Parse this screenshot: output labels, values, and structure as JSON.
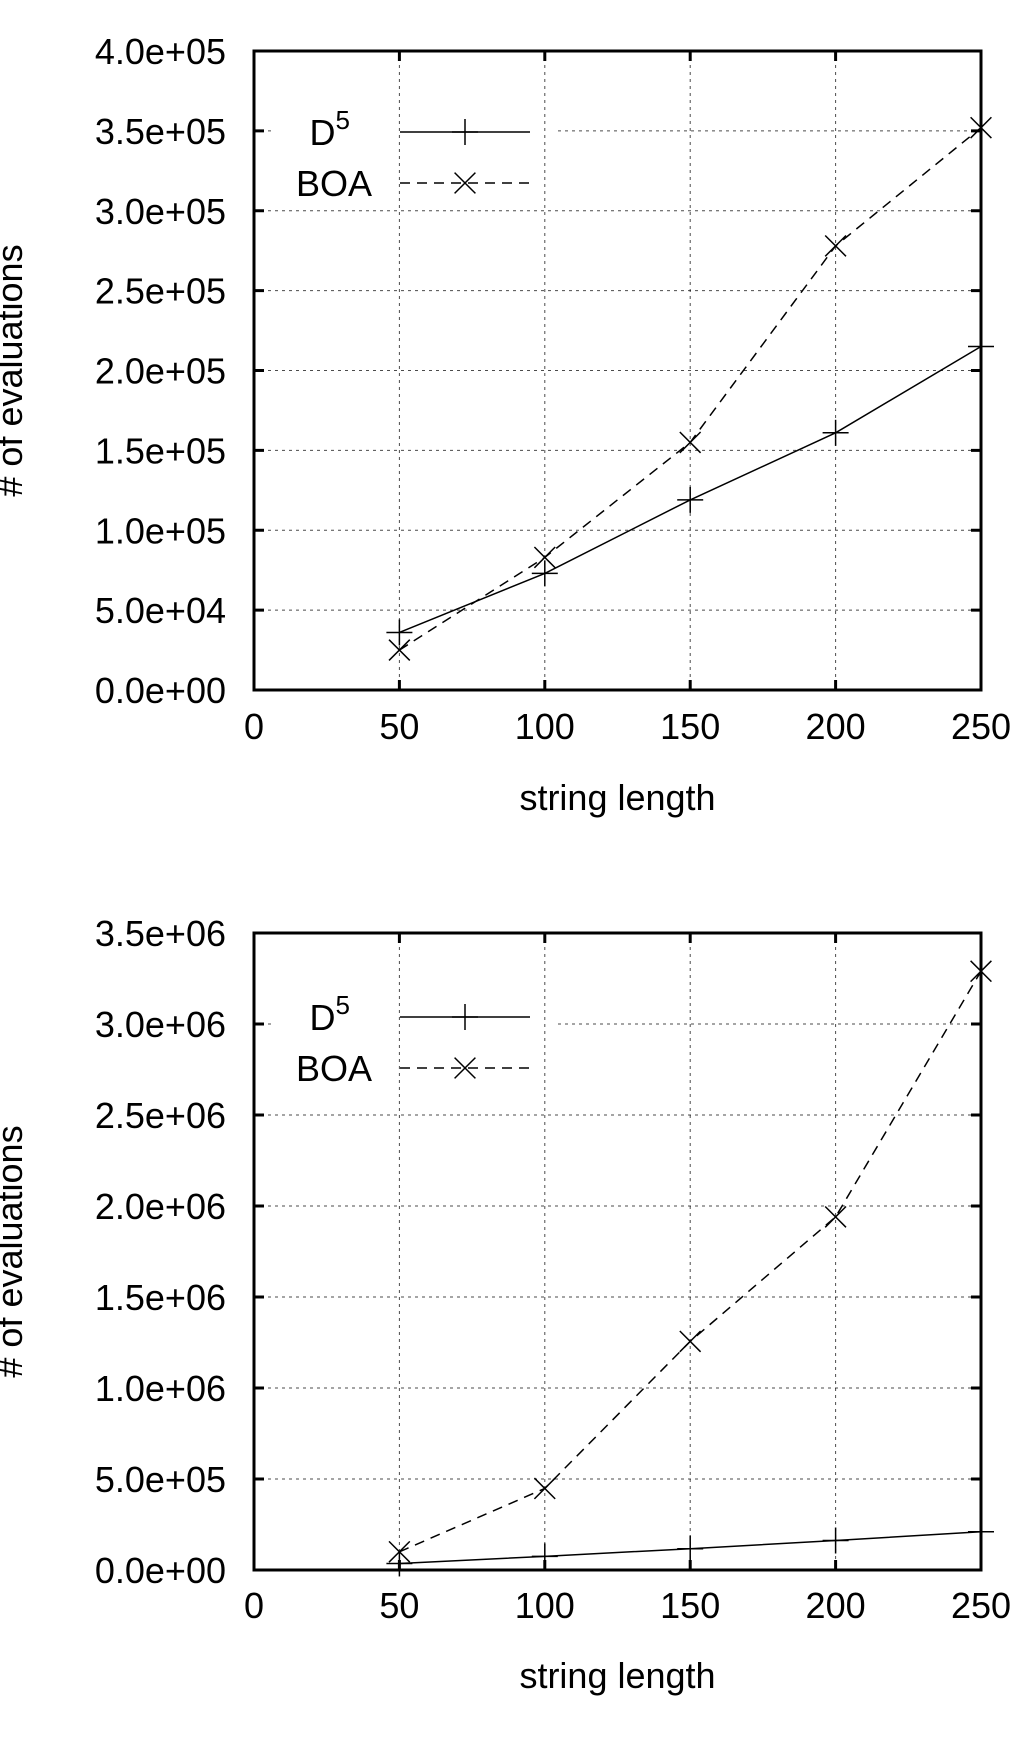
{
  "chart_data": [
    {
      "type": "line",
      "xlabel": "string length",
      "ylabel": "# of evaluations",
      "xlim": [
        0,
        250
      ],
      "ylim": [
        0,
        400000
      ],
      "x_ticks": [
        "0",
        "50",
        "100",
        "150",
        "200",
        "250"
      ],
      "y_ticks": [
        "0.0e+00",
        "5.0e+04",
        "1.0e+05",
        "1.5e+05",
        "2.0e+05",
        "2.5e+05",
        "3.0e+05",
        "3.5e+05",
        "4.0e+05"
      ],
      "grid": true,
      "legend_position": "top-left",
      "x": [
        50,
        100,
        150,
        200,
        250
      ],
      "series": [
        {
          "name": "D",
          "name_sup": "5",
          "marker": "plus",
          "dash": "solid",
          "values": [
            36000,
            73000,
            119000,
            161000,
            215000
          ]
        },
        {
          "name": "BOA",
          "name_sup": "",
          "marker": "cross",
          "dash": "dashed",
          "values": [
            25000,
            83000,
            155000,
            278000,
            352000
          ]
        }
      ]
    },
    {
      "type": "line",
      "xlabel": "string length",
      "ylabel": "# of evaluations",
      "xlim": [
        0,
        250
      ],
      "ylim": [
        0,
        3500000
      ],
      "x_ticks": [
        "0",
        "50",
        "100",
        "150",
        "200",
        "250"
      ],
      "y_ticks": [
        "0.0e+00",
        "5.0e+05",
        "1.0e+06",
        "1.5e+06",
        "2.0e+06",
        "2.5e+06",
        "3.0e+06",
        "3.5e+06"
      ],
      "grid": true,
      "legend_position": "top-left",
      "x": [
        50,
        100,
        150,
        200,
        250
      ],
      "series": [
        {
          "name": "D",
          "name_sup": "5",
          "marker": "plus",
          "dash": "solid",
          "values": [
            36000,
            75000,
            117000,
            162000,
            210000
          ]
        },
        {
          "name": "BOA",
          "name_sup": "",
          "marker": "cross",
          "dash": "dashed",
          "values": [
            100000,
            448000,
            1256000,
            1940000,
            3290000
          ]
        }
      ]
    }
  ]
}
